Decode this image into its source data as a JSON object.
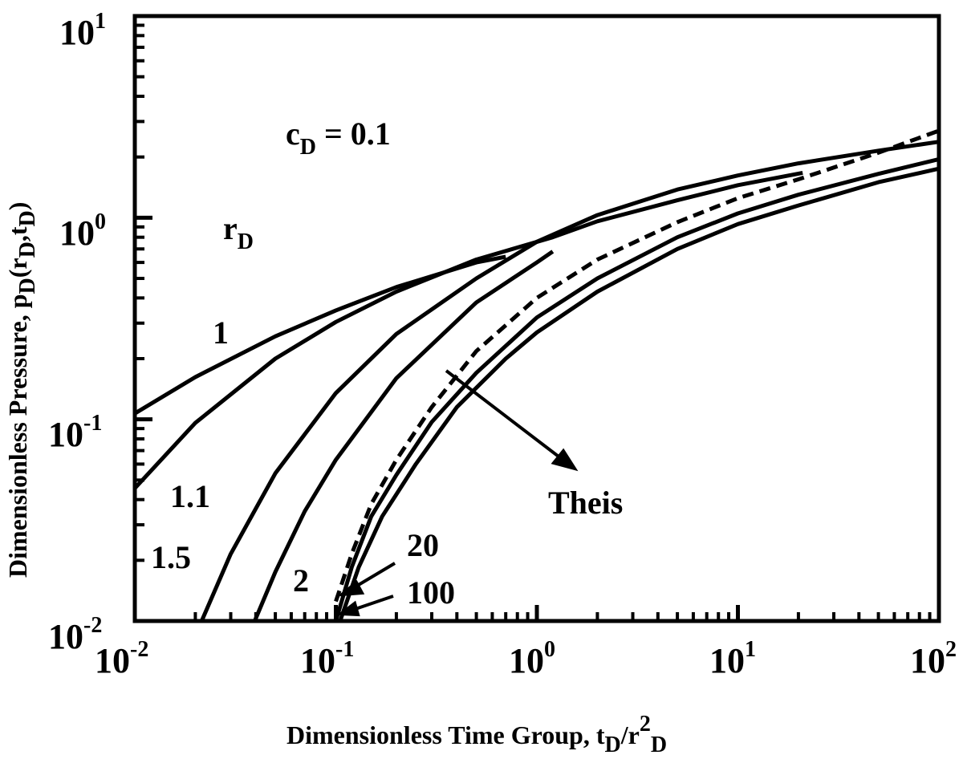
{
  "chart_data": {
    "type": "line",
    "title": "",
    "xscale": "log",
    "yscale": "log",
    "xlim": [
      0.01,
      100
    ],
    "ylim": [
      0.01,
      10
    ],
    "grid": false,
    "xlabel": {
      "main": "Dimensionless Time Group, t",
      "sub1": "D",
      "mid": "/r",
      "sup": "2",
      "sub2": "D"
    },
    "ylabel": {
      "main": "Dimensionless Pressure, p",
      "sub1": "D",
      "mid1": "(r",
      "sub2": "D",
      "mid2": ",t",
      "sub3": "D",
      "end": ")"
    },
    "x_ticks": [
      {
        "base": "10",
        "exp": "-2"
      },
      {
        "base": "10",
        "exp": "-1"
      },
      {
        "base": "10",
        "exp": "0"
      },
      {
        "base": "10",
        "exp": "1"
      },
      {
        "base": "10",
        "exp": "2"
      }
    ],
    "y_ticks": [
      {
        "base": "10",
        "exp": "-2"
      },
      {
        "base": "10",
        "exp": "-1"
      },
      {
        "base": "10",
        "exp": "0"
      },
      {
        "base": "10",
        "exp": "1"
      }
    ],
    "parameter": {
      "main": "c",
      "sub": "D",
      "rest": " = 0.1"
    },
    "rd_header": {
      "main": "r",
      "sub": "D"
    },
    "series": [
      {
        "name": "1",
        "style": "solid",
        "points": [
          [
            0.01,
            0.107
          ],
          [
            0.02,
            0.162
          ],
          [
            0.05,
            0.258
          ],
          [
            0.1,
            0.347
          ],
          [
            0.2,
            0.453
          ],
          [
            0.5,
            0.6
          ],
          [
            0.7,
            0.64
          ]
        ]
      },
      {
        "name": "1.1",
        "style": "solid",
        "points": [
          [
            0.01,
            0.0455
          ],
          [
            0.02,
            0.096
          ],
          [
            0.05,
            0.2
          ],
          [
            0.1,
            0.304
          ],
          [
            0.2,
            0.43
          ],
          [
            0.5,
            0.62
          ],
          [
            1.2,
            0.8
          ],
          [
            2,
            0.96
          ],
          [
            5,
            1.22
          ],
          [
            10,
            1.45
          ],
          [
            21,
            1.67
          ]
        ]
      },
      {
        "name": "1.5",
        "style": "solid",
        "points": [
          [
            0.0215,
            0.01
          ],
          [
            0.03,
            0.0215
          ],
          [
            0.05,
            0.054
          ],
          [
            0.1,
            0.135
          ],
          [
            0.2,
            0.265
          ],
          [
            0.5,
            0.5
          ],
          [
            1,
            0.76
          ],
          [
            2,
            1.03
          ],
          [
            5,
            1.38
          ],
          [
            10,
            1.62
          ],
          [
            20,
            1.86
          ],
          [
            50,
            2.15
          ],
          [
            100,
            2.38
          ]
        ]
      },
      {
        "name": "2",
        "style": "solid",
        "points": [
          [
            0.0395,
            0.01
          ],
          [
            0.05,
            0.0175
          ],
          [
            0.07,
            0.035
          ],
          [
            0.1,
            0.063
          ],
          [
            0.2,
            0.16
          ],
          [
            0.5,
            0.38
          ],
          [
            1,
            0.6
          ],
          [
            1.2,
            0.68
          ]
        ]
      },
      {
        "name": "Theis",
        "style": "dashed",
        "points": [
          [
            0.1,
            0.0125
          ],
          [
            0.12,
            0.0215
          ],
          [
            0.15,
            0.038
          ],
          [
            0.2,
            0.063
          ],
          [
            0.3,
            0.115
          ],
          [
            0.5,
            0.218
          ],
          [
            1,
            0.4
          ],
          [
            2,
            0.62
          ],
          [
            5,
            0.95
          ],
          [
            10,
            1.25
          ],
          [
            20,
            1.55
          ],
          [
            50,
            2.1
          ],
          [
            100,
            2.7
          ]
        ]
      },
      {
        "name": "20",
        "style": "solid",
        "points": [
          [
            0.1,
            0.01
          ],
          [
            0.12,
            0.0185
          ],
          [
            0.15,
            0.033
          ],
          [
            0.2,
            0.053
          ],
          [
            0.3,
            0.097
          ],
          [
            0.5,
            0.17
          ],
          [
            1,
            0.32
          ],
          [
            2,
            0.5
          ],
          [
            5,
            0.8
          ],
          [
            10,
            1.05
          ],
          [
            20,
            1.3
          ],
          [
            50,
            1.65
          ],
          [
            100,
            1.95
          ]
        ]
      },
      {
        "name": "100",
        "style": "solid",
        "points": [
          [
            0.105,
            0.01
          ],
          [
            0.13,
            0.0185
          ],
          [
            0.17,
            0.033
          ],
          [
            0.25,
            0.06
          ],
          [
            0.4,
            0.115
          ],
          [
            0.7,
            0.2
          ],
          [
            1,
            0.27
          ],
          [
            2,
            0.43
          ],
          [
            5,
            0.7
          ],
          [
            10,
            0.93
          ],
          [
            20,
            1.15
          ],
          [
            50,
            1.5
          ],
          [
            100,
            1.75
          ]
        ]
      }
    ],
    "curve_labels": [
      "1",
      "1.1",
      "1.5",
      "2",
      "20",
      "100"
    ],
    "annotation": "Theis"
  }
}
